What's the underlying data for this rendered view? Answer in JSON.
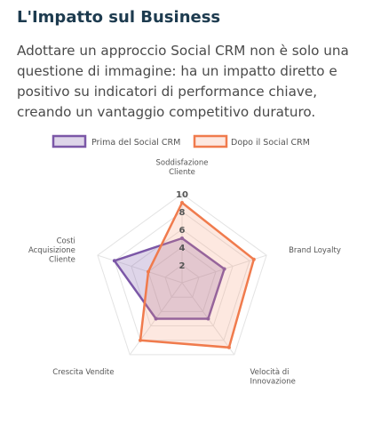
{
  "section": {
    "title": "L'Impatto sul Business",
    "description": "Adottare un approccio Social CRM non è solo una questione di immagine: ha un impatto diretto e positivo su indicatori di performance chiave, creando un vantaggio competitivo duraturo."
  },
  "chart_data": {
    "type": "radar",
    "axes": [
      [
        "Soddisfazione",
        "Cliente"
      ],
      [
        "Brand Loyalty"
      ],
      [
        "Velocità di",
        "Innovazione"
      ],
      [
        "Crescita Vendite"
      ],
      [
        "Costi",
        "Acquisizione",
        "Cliente"
      ]
    ],
    "rlim": [
      0,
      10
    ],
    "ticks": [
      2,
      4,
      6,
      8,
      10
    ],
    "grid": true,
    "legend_position": "top",
    "series": [
      {
        "name": "Prima del Social CRM",
        "values": [
          5,
          5,
          5,
          5,
          8
        ],
        "color": "#7b57a7",
        "fill": "rgba(123, 87, 167, 0.25)"
      },
      {
        "name": "Dopo il Social CRM",
        "values": [
          9,
          8.5,
          9,
          8,
          4
        ],
        "color": "#f07b4d",
        "fill": "rgba(244, 148, 112, 0.22)"
      }
    ]
  }
}
